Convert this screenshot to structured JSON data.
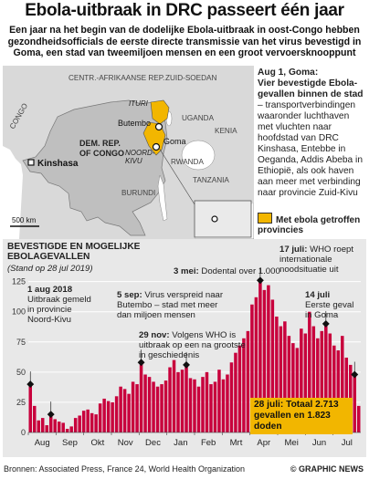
{
  "title": "Ebola-uitbraak in DRC passeert één jaar",
  "subtitle": "Een jaar na het begin van de dodelijke Ebola-uitbraak in oost-Congo hebben gezondheidsofficials de eerste directe transmissie van het virus bevestigd in Goma, een stad van tweemiljoen mensen en een groot vervoersknooppunt",
  "map": {
    "labels": {
      "car": "CENTR.-AFRIKAANSE REP.",
      "south_sudan": "ZUID-SOEDAN",
      "congo": "CONGO",
      "uganda": "UGANDA",
      "kenya": "KENIA",
      "drc1": "DEM. REP.",
      "drc2": "OF CONGO",
      "ituri": "ITURI",
      "butembo": "Butembo",
      "noord1": "NOORD-",
      "noord2": "KIVU",
      "goma": "Goma",
      "rwanda": "RWANDA",
      "burundi": "BURUNDI",
      "tanzania": "TANZANIA",
      "kinshasa": "Kinshasa",
      "scale": "500 km"
    },
    "colors": {
      "land": "#d9d9d9",
      "drc": "#bfbfbf",
      "water": "#ffffff",
      "ebola": "#f2b600"
    }
  },
  "side": {
    "heading": "Aug 1, Goma:",
    "bold_text": "Vier bevestigde Ebola-gevallen binnen de stad",
    "text": " – transportverbindingen waaronder luchthaven met vluchten naar hoofdstad van DRC Kinshasa, Entebbe in Oeganda, Addis Abeba in Ethiopië, als ook haven aan meer met verbinding naar provincie Zuid-Kivu"
  },
  "legend": {
    "label": "Met ebola getroffen provincies",
    "color": "#f2b600"
  },
  "chart_title": "BEVESTIGDE EN MOGELIJKE EBOLAGEVALLEN",
  "chart_note": "(Stand op 28 jul 2019)",
  "annotations": {
    "a1_date": "1 aug 2018",
    "a1_text": "Uitbraak gemeld in provincie Noord-Kivu",
    "a2_date": "5 sep:",
    "a2_text": "Virus verspreid naar Butembo – stad met meer dan miljoen mensen",
    "a3_date": "29 nov:",
    "a3_text": "Volgens WHO is uitbraak op een na grootste in geschiedenis",
    "a4_date": "3 mei:",
    "a4_text": "Dodental over 1.000",
    "a5_date": "14 juli",
    "a5_text": "Eerste geval in Goma",
    "a6_date": "17 juli:",
    "a6_text": "WHO roept internationale noodsituatie uit"
  },
  "callout": "28 juli: Totaal 2.713 gevallen en 1.823 doden",
  "sources": "Bronnen: Associated Press, France 24, World Health Organization",
  "credit": "© GRAPHIC NEWS",
  "chart_data": {
    "type": "bar",
    "title": "BEVESTIGDE EN MOGELIJKE EBOLAGEVALLEN",
    "subtitle": "(Stand op 28 jul 2019)",
    "x_labels": [
      "Aug",
      "Sep",
      "Okt",
      "Nov",
      "Dec",
      "Jan",
      "Feb",
      "Mrt",
      "Apr",
      "Mei",
      "Jun",
      "Jul"
    ],
    "y_ticks": [
      0,
      25,
      50,
      75,
      100,
      125
    ],
    "ylim": [
      0,
      130
    ],
    "grid": true,
    "bar_color": "#c8003c",
    "values": [
      40,
      22,
      10,
      12,
      6,
      15,
      11,
      9,
      8,
      3,
      5,
      12,
      14,
      18,
      19,
      16,
      15,
      24,
      28,
      26,
      25,
      30,
      38,
      36,
      32,
      42,
      40,
      58,
      48,
      46,
      42,
      38,
      40,
      43,
      54,
      60,
      50,
      52,
      56,
      45,
      44,
      38,
      46,
      50,
      40,
      42,
      52,
      44,
      48,
      58,
      66,
      72,
      78,
      84,
      106,
      112,
      126,
      118,
      122,
      110,
      96,
      88,
      92,
      80,
      74,
      70,
      86,
      82,
      100,
      88,
      78,
      84,
      90,
      82,
      72,
      68,
      80,
      62,
      56,
      48,
      22
    ],
    "markers": [
      {
        "index": 0,
        "value": 40
      },
      {
        "index": 5,
        "value": 15
      },
      {
        "index": 27,
        "value": 58
      },
      {
        "index": 38,
        "value": 56
      },
      {
        "index": 56,
        "value": 126
      },
      {
        "index": 72,
        "value": 90
      },
      {
        "index": 79,
        "value": 48
      }
    ]
  }
}
